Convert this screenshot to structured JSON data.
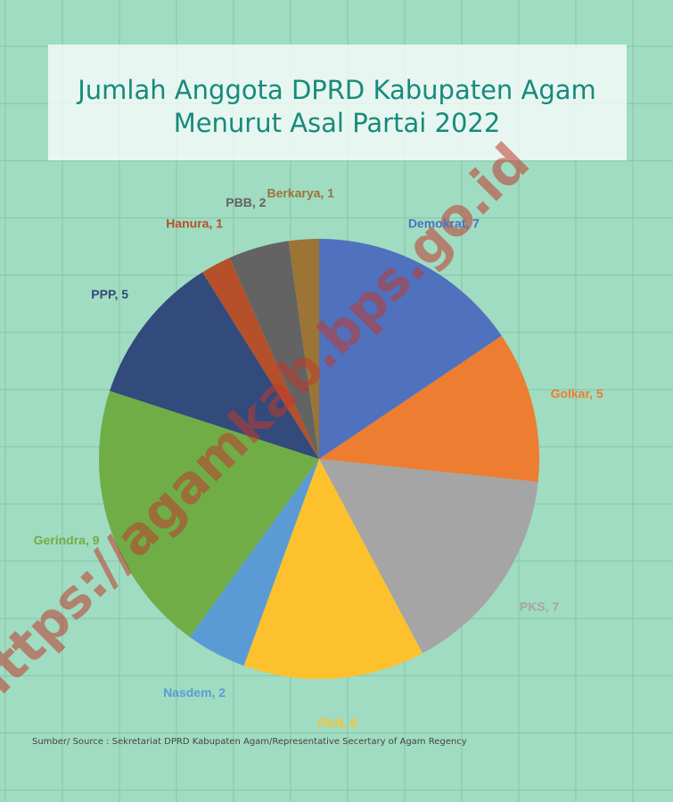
{
  "chart_data": {
    "type": "pie",
    "title": [
      "Jumlah Anggota DPRD Kabupaten Agam",
      "Menurut Asal Partai 2022"
    ],
    "categories": [
      "Demokrat",
      "Golkar",
      "PKS",
      "PAN",
      "Nasdem",
      "Gerindra",
      "PPP",
      "Hanura",
      "PBB",
      "Berkarya"
    ],
    "values": [
      7,
      5,
      7,
      6,
      2,
      9,
      5,
      1,
      2,
      1
    ],
    "value_labels": [
      "Demokrat, 7",
      "Golkar, 5",
      "PKS, 7",
      "PAN, 6",
      "Nasdem, 2",
      "Gerindra, 9",
      "PPP, 5",
      "Hanura, 1",
      "PBB, 2",
      "Berkarya, 1"
    ],
    "colors": [
      "#4f71be",
      "#ed7d31",
      "#a5a5a5",
      "#fdc12d",
      "#5b9bd5",
      "#70ad47",
      "#324a7c",
      "#b5502a",
      "#636363",
      "#9b7436"
    ],
    "source": "Sumber/ Source : Sekretariat DPRD Kabupaten Agam/Representative Secertary of Agam Regency",
    "watermark": "https://agamkab.bps.go.id"
  }
}
